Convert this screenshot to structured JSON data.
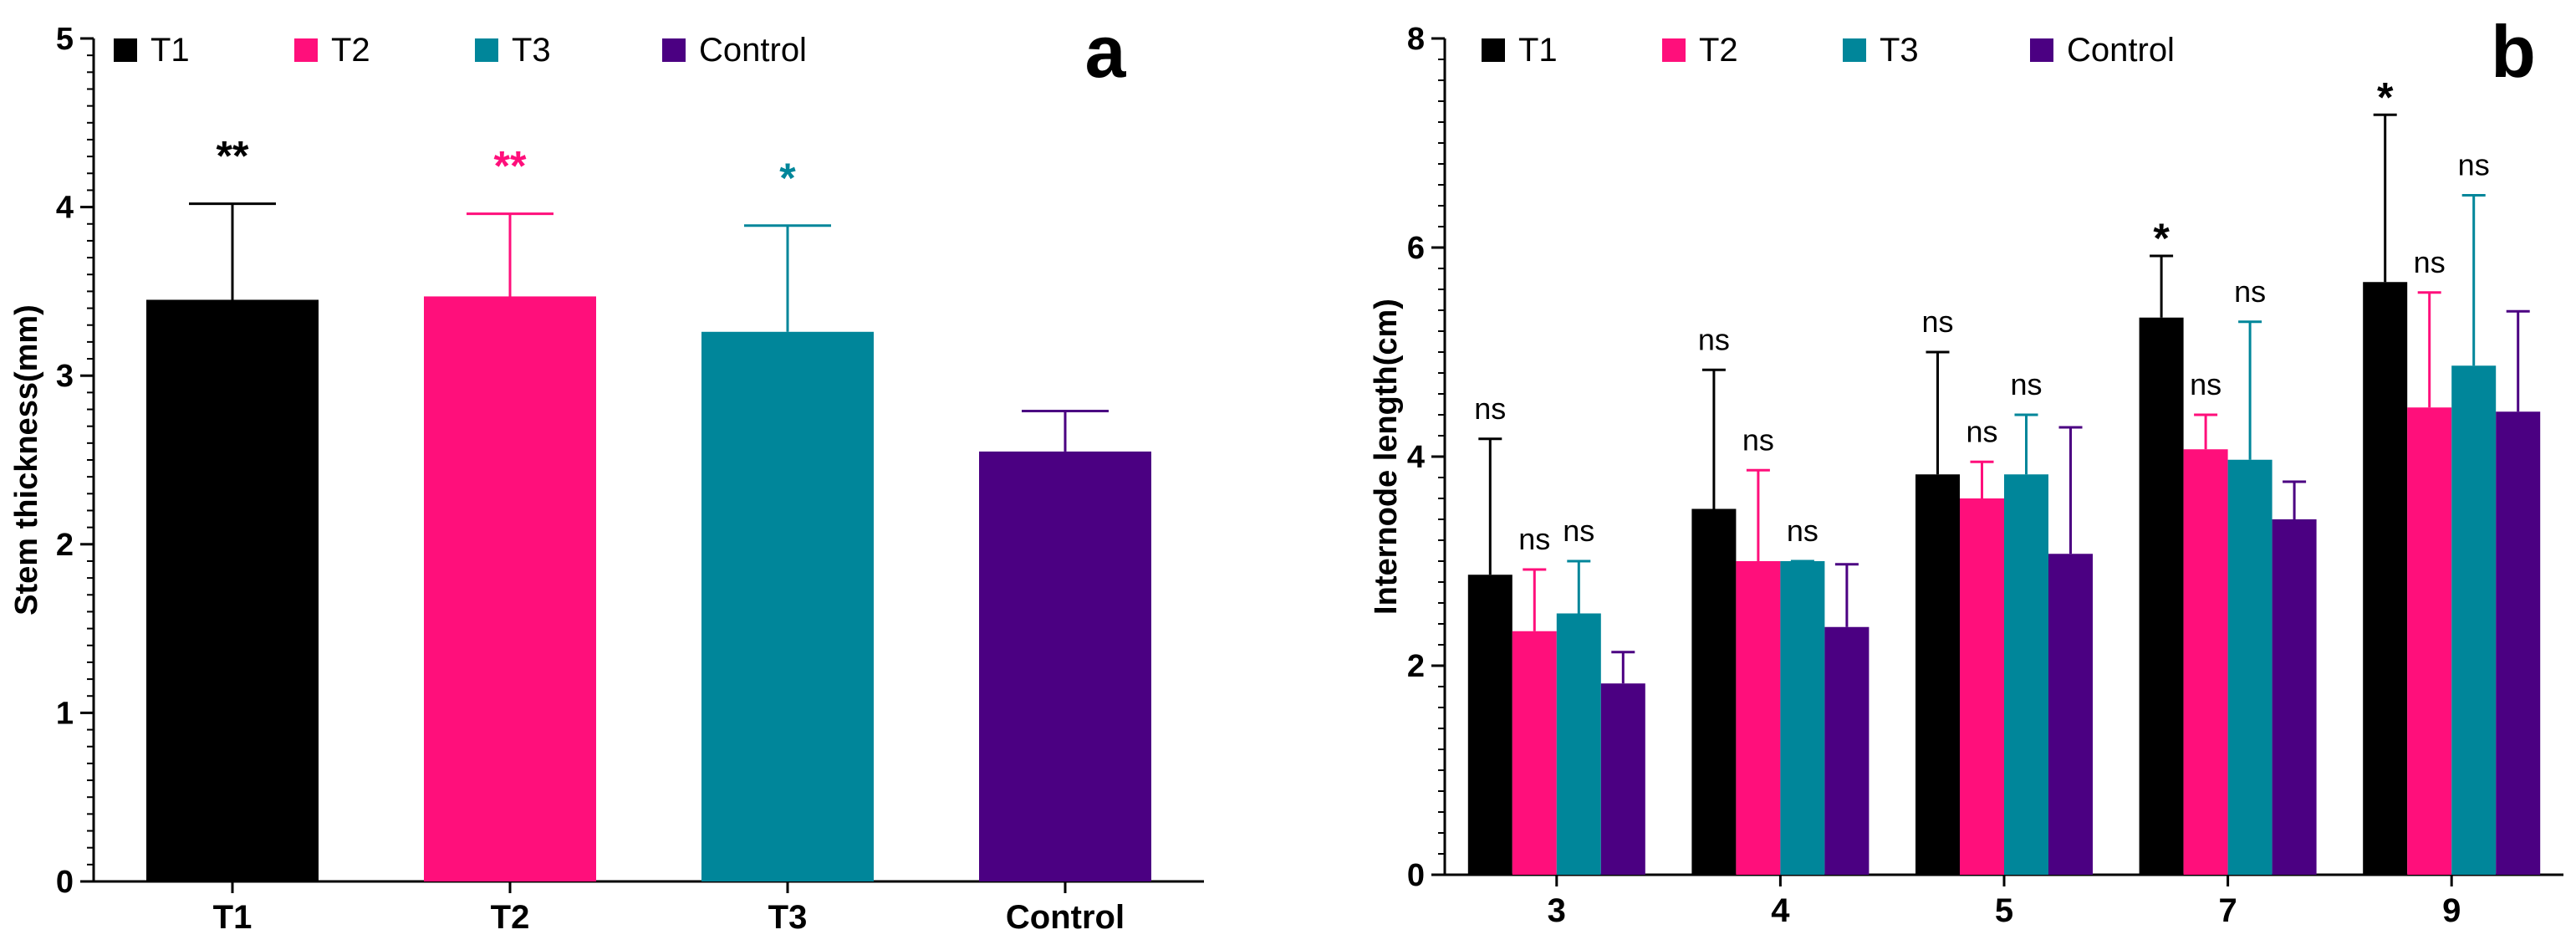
{
  "chart_data": [
    {
      "type": "bar",
      "panel_label": "a",
      "title": "",
      "xlabel": "",
      "ylabel": "Stem thickness(mm)",
      "ylim": [
        0,
        5
      ],
      "yticks": [
        0,
        1,
        2,
        3,
        4,
        5
      ],
      "categories": [
        "T1",
        "T2",
        "T3",
        "Control"
      ],
      "values": [
        3.45,
        3.47,
        3.26,
        2.55
      ],
      "errors": [
        0.57,
        0.49,
        0.63,
        0.24
      ],
      "colors": [
        "#000000",
        "#ff0f7b",
        "#00869a",
        "#4b0082"
      ],
      "significance": [
        "**",
        "**",
        "*",
        ""
      ],
      "legend": [
        "T1",
        "T2",
        "T3",
        "Control"
      ],
      "legend_position": "top-left"
    },
    {
      "type": "bar",
      "panel_label": "b",
      "title": "",
      "xlabel": "",
      "ylabel": "Internode length(cm)",
      "ylim": [
        0,
        8
      ],
      "yticks": [
        0,
        2,
        4,
        6,
        8
      ],
      "categories": [
        "3",
        "4",
        "5",
        "7",
        "9"
      ],
      "legend": [
        "T1",
        "T2",
        "T3",
        "Control"
      ],
      "legend_position": "top-left",
      "series": [
        {
          "name": "T1",
          "color": "#000000",
          "values": [
            2.87,
            3.5,
            3.83,
            5.33,
            5.67
          ],
          "errors": [
            1.3,
            1.33,
            1.17,
            0.59,
            1.6
          ],
          "significance": [
            "ns",
            "ns",
            "ns",
            "*",
            "*"
          ]
        },
        {
          "name": "T2",
          "color": "#ff0f7b",
          "values": [
            2.33,
            3.0,
            3.6,
            4.07,
            4.47
          ],
          "errors": [
            0.59,
            0.87,
            0.35,
            0.33,
            1.1
          ],
          "significance": [
            "ns",
            "ns",
            "ns",
            "ns",
            "ns"
          ]
        },
        {
          "name": "T3",
          "color": "#00869a",
          "values": [
            2.5,
            3.0,
            3.83,
            3.97,
            4.87
          ],
          "errors": [
            0.5,
            0.0,
            0.57,
            1.32,
            1.63
          ],
          "significance": [
            "ns",
            "ns",
            "ns",
            "ns",
            "ns"
          ]
        },
        {
          "name": "Control",
          "color": "#4b0082",
          "values": [
            1.83,
            2.37,
            3.07,
            3.4,
            4.43
          ],
          "errors": [
            0.3,
            0.6,
            1.21,
            0.36,
            0.96
          ],
          "significance": [
            "",
            "",
            "",
            "",
            ""
          ]
        }
      ]
    }
  ]
}
